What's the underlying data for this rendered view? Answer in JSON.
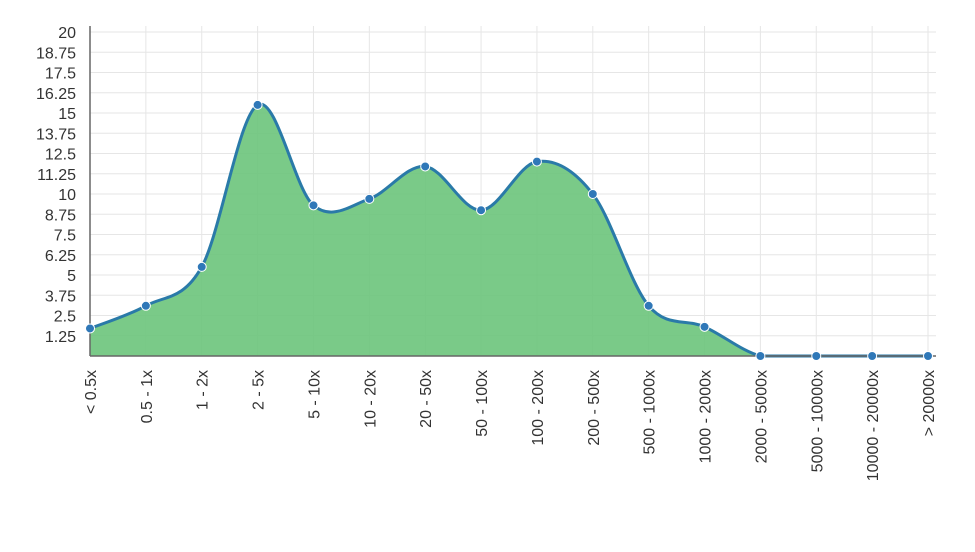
{
  "chart_data": {
    "type": "area",
    "title": "",
    "xlabel": "",
    "ylabel": "",
    "categories": [
      "< 0.5x",
      "0.5 - 1x",
      "1 - 2x",
      "2 - 5x",
      "5 - 10x",
      "10 - 20x",
      "20 - 50x",
      "50 - 100x",
      "100 - 200x",
      "200 - 500x",
      "500 - 1000x",
      "1000 - 2000x",
      "2000 - 5000x",
      "5000 - 10000x",
      "10000 - 20000x",
      "> 20000x"
    ],
    "series": [
      {
        "values": [
          1.7,
          3.1,
          5.5,
          15.5,
          9.3,
          9.7,
          11.7,
          9.0,
          12.0,
          10.0,
          3.1,
          1.8,
          0,
          0,
          0,
          0
        ]
      }
    ],
    "ylim": [
      0,
      20
    ],
    "yticks": [
      "1.25",
      "2.5",
      "3.75",
      "5",
      "6.25",
      "7.5",
      "8.75",
      "10",
      "11.25",
      "12.5",
      "13.75",
      "15",
      "16.25",
      "17.5",
      "18.75",
      "20"
    ],
    "grid": true,
    "colors": {
      "fill": "#6cc47b",
      "line": "#2a7aa8",
      "point": "#2f78b8",
      "grid": "#e6e6e6",
      "axis": "#666666"
    }
  }
}
